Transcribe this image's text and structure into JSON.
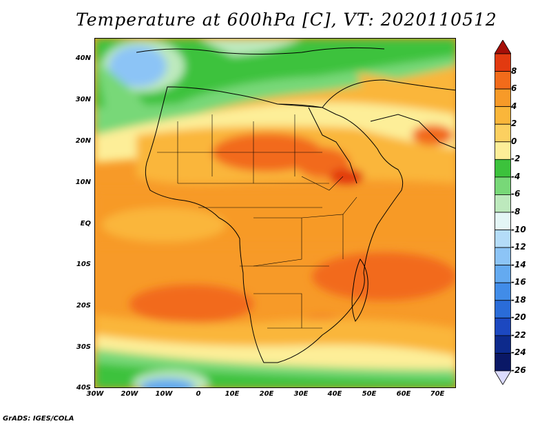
{
  "title": "Temperature at 600hPa [C], VT: 2020110512",
  "footer": "GrADS: IGES/COLA",
  "latitude_labels": [
    "40N",
    "30N",
    "20N",
    "10N",
    "EQ",
    "10S",
    "20S",
    "30S",
    "40S"
  ],
  "longitude_labels": [
    "30W",
    "20W",
    "10W",
    "0",
    "10E",
    "20E",
    "30E",
    "40E",
    "50E",
    "60E",
    "70E"
  ],
  "colorbar": {
    "labels": [
      "8",
      "6",
      "4",
      "2",
      "0",
      "-2",
      "-4",
      "-6",
      "-8",
      "-10",
      "-12",
      "-14",
      "-16",
      "-18",
      "-20",
      "-22",
      "-24",
      "-26"
    ],
    "colors": [
      "#a50f08",
      "#e23a10",
      "#f26b1a",
      "#f79a28",
      "#fab63a",
      "#fcd060",
      "#fdee98",
      "#3cc23c",
      "#78d878",
      "#bde9bd",
      "#e4f6f6",
      "#b4dcf8",
      "#8cc4f6",
      "#64aaf0",
      "#418ce8",
      "#2a6cd8",
      "#1c48c0",
      "#0d2a8c",
      "#0a1866",
      "#dcdcff"
    ]
  },
  "map": {
    "lon_range": [
      -30,
      76
    ],
    "lat_range": [
      -40,
      45
    ],
    "field": "Temperature at 600hPa",
    "units": "C"
  }
}
